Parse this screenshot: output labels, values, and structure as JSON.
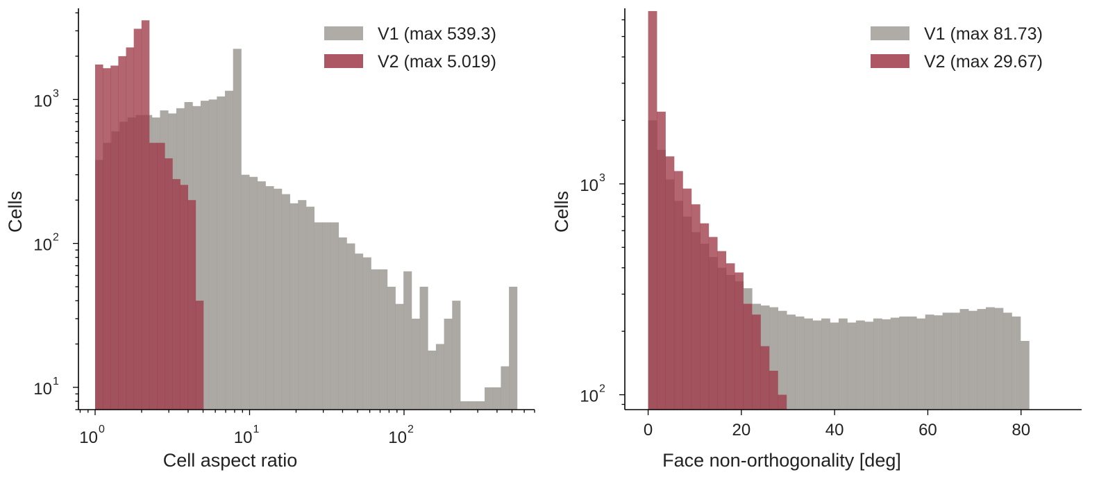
{
  "chart_data": [
    {
      "type": "bar",
      "subtype": "overlaid-histogram",
      "xlabel": "Cell aspect ratio",
      "ylabel": "Cells",
      "xscale": "log",
      "yscale": "log",
      "xlim": [
        0.78,
        700
      ],
      "ylim": [
        7,
        4300
      ],
      "x_ticks": [
        {
          "value": 1,
          "base": "10",
          "exp": "0"
        },
        {
          "value": 10,
          "base": "10",
          "exp": "1"
        },
        {
          "value": 100,
          "base": "10",
          "exp": "2"
        }
      ],
      "y_ticks": [
        {
          "value": 10,
          "base": "10",
          "exp": "1"
        },
        {
          "value": 100,
          "base": "10",
          "exp": "2"
        },
        {
          "value": 1000,
          "base": "10",
          "exp": "3"
        }
      ],
      "legend_position": "top-right",
      "grid": false,
      "series": [
        {
          "name": "V1  (max 539.3)",
          "color": "#a19d99",
          "bin_start": 1.0,
          "bin_end": 539.3,
          "counts": [
            380,
            500,
            600,
            700,
            750,
            780,
            780,
            750,
            840,
            800,
            870,
            960,
            900,
            980,
            1000,
            1050,
            1150,
            2250,
            300,
            290,
            270,
            250,
            240,
            220,
            190,
            200,
            180,
            140,
            140,
            140,
            110,
            100,
            85,
            80,
            66,
            66,
            50,
            38,
            64,
            30,
            50,
            18,
            20,
            30,
            40,
            8,
            8,
            8,
            10,
            10,
            14,
            50
          ]
        },
        {
          "name": "V2  (max 5.019)",
          "color": "#9e3a48",
          "bin_start": 1.0,
          "bin_end": 5.019,
          "counts": [
            1750,
            1650,
            1720,
            2000,
            2300,
            3100,
            3550,
            500,
            500,
            390,
            280,
            255,
            200,
            40
          ]
        }
      ]
    },
    {
      "type": "bar",
      "subtype": "overlaid-histogram",
      "xlabel": "Face non-orthogonality  [deg]",
      "ylabel": "Cells",
      "xscale": "linear",
      "yscale": "log",
      "xlim": [
        -5,
        93
      ],
      "ylim": [
        85,
        6800
      ],
      "x_ticks": [
        {
          "value": 0,
          "label": "0"
        },
        {
          "value": 20,
          "label": "20"
        },
        {
          "value": 40,
          "label": "40"
        },
        {
          "value": 60,
          "label": "60"
        },
        {
          "value": 80,
          "label": "80"
        }
      ],
      "y_ticks": [
        {
          "value": 100,
          "base": "10",
          "exp": "2"
        },
        {
          "value": 1000,
          "base": "10",
          "exp": "3"
        }
      ],
      "legend_position": "top-right",
      "grid": false,
      "series": [
        {
          "name": "V1  (max 81.73)",
          "color": "#a19d99",
          "bin_start": 0,
          "bin_end": 81.73,
          "counts": [
            2000,
            1450,
            1050,
            830,
            700,
            590,
            520,
            450,
            400,
            370,
            345,
            320,
            270,
            265,
            260,
            250,
            240,
            235,
            230,
            225,
            230,
            220,
            230,
            220,
            225,
            222,
            230,
            228,
            232,
            235,
            235,
            230,
            240,
            238,
            245,
            245,
            255,
            250,
            255,
            260,
            258,
            245,
            235,
            180
          ]
        },
        {
          "name": "V2  (max 29.67)",
          "color": "#9e3a48",
          "bin_start": 0,
          "bin_end": 29.67,
          "counts": [
            6600,
            2200,
            1350,
            1150,
            950,
            800,
            650,
            560,
            480,
            420,
            380,
            270,
            240,
            170,
            130,
            100
          ]
        }
      ]
    }
  ]
}
